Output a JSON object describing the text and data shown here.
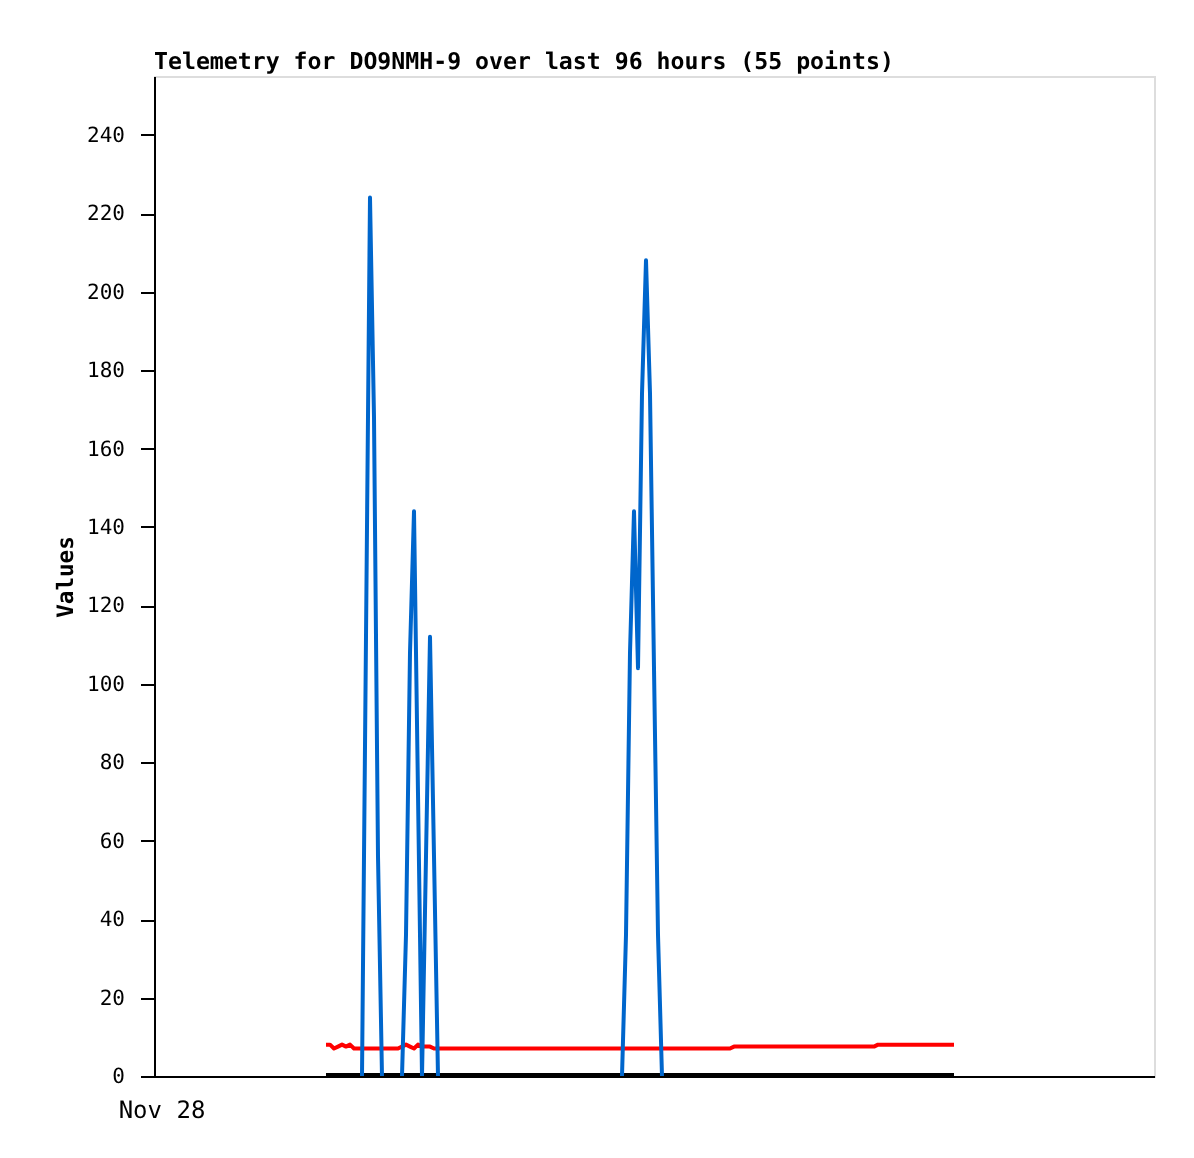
{
  "chart_data": {
    "type": "line",
    "title": "Telemetry for DO9NMH-9 over last 96 hours (55 points)",
    "ylabel": "Values",
    "annotations": [
      "Nov 28"
    ],
    "categories": [
      null,
      null,
      null,
      null,
      null,
      null,
      null,
      null,
      null,
      null,
      null,
      null,
      null,
      null,
      null,
      null,
      null,
      null,
      null,
      null,
      null,
      null,
      null,
      null,
      null,
      null,
      null,
      null,
      null,
      null,
      null,
      null,
      null,
      null,
      null,
      null,
      null,
      null,
      null,
      null,
      null,
      null,
      null,
      null,
      null,
      null,
      null,
      null,
      null,
      null,
      null,
      null,
      null,
      null,
      null,
      null,
      null,
      null,
      null,
      null,
      null,
      null,
      null,
      null,
      null,
      null,
      null,
      null,
      null,
      null,
      null,
      null,
      null,
      null,
      null,
      null,
      null,
      null,
      null,
      null,
      null,
      null,
      null,
      null,
      null,
      null,
      null,
      null,
      null,
      null,
      null,
      null,
      null,
      null,
      null,
      null,
      null,
      null,
      null,
      null,
      null,
      null,
      null,
      null,
      null,
      null,
      null,
      null,
      null,
      null,
      null,
      null,
      null,
      null,
      null,
      null,
      null,
      null,
      null,
      null,
      null,
      null,
      null,
      null,
      null,
      null,
      null,
      null,
      null,
      null,
      null,
      null,
      null,
      null,
      null,
      null,
      null,
      null,
      null,
      null,
      null,
      null,
      null,
      null,
      null,
      null,
      null,
      null,
      null,
      null,
      null,
      null,
      null,
      null,
      null,
      null,
      null,
      null
    ],
    "ylim": [
      0,
      255
    ],
    "yticks": [
      0,
      20,
      40,
      60,
      80,
      100,
      120,
      140,
      160,
      180,
      200,
      220,
      240
    ],
    "series": [
      {
        "color": "#000000",
        "values": [
          0,
          0,
          0,
          0,
          0,
          0,
          0,
          0,
          0,
          0,
          0,
          0,
          0,
          0,
          0,
          0,
          0,
          0,
          0,
          0,
          0,
          0,
          0,
          0,
          0,
          0,
          0,
          0,
          0,
          0,
          0,
          0,
          0,
          0,
          0,
          0,
          0,
          0,
          0,
          0,
          0,
          0,
          0,
          0,
          0,
          0,
          0,
          0,
          0,
          0,
          0,
          0,
          0,
          0,
          0,
          0,
          0,
          0,
          0,
          0,
          0,
          0,
          0,
          0,
          0,
          0,
          0,
          0,
          0,
          0,
          0,
          0,
          0,
          0,
          0,
          0,
          0,
          0,
          0,
          0,
          0,
          0,
          0,
          0,
          0,
          0,
          0,
          0,
          0,
          0,
          0,
          0,
          0,
          0,
          0,
          0,
          0,
          0,
          0,
          0,
          0,
          0,
          0,
          0,
          0,
          0,
          0,
          0,
          0,
          0,
          0,
          0,
          0,
          0,
          0,
          0,
          0,
          0,
          0,
          0,
          0,
          0,
          0,
          0,
          0,
          0,
          0,
          0,
          0,
          0,
          0,
          0,
          0,
          0,
          0,
          0,
          0,
          0,
          0,
          0,
          0,
          0,
          0,
          0,
          0,
          0,
          0,
          0,
          0,
          0,
          0,
          0,
          0,
          0,
          0,
          0,
          0,
          0
        ]
      },
      {
        "color": "#ff0000",
        "values": [
          8,
          8,
          7,
          7.5,
          8,
          7.5,
          8,
          7,
          7,
          7,
          7,
          7,
          7,
          7,
          7,
          7,
          7,
          7,
          7,
          7.5,
          8,
          7.5,
          7,
          8,
          7.5,
          7.5,
          7.5,
          7,
          7,
          7,
          7,
          7,
          7,
          7,
          7,
          7,
          7,
          7,
          7,
          7,
          7,
          7,
          7,
          7,
          7,
          7,
          7,
          7,
          7,
          7,
          7,
          7,
          7,
          7,
          7,
          7,
          7,
          7,
          7,
          7,
          7,
          7,
          7,
          7,
          7,
          7,
          7,
          7,
          7,
          7,
          7,
          7,
          7,
          7,
          7,
          7,
          7,
          7,
          7,
          7,
          7,
          7,
          7,
          7,
          7,
          7,
          7,
          7,
          7,
          7,
          7,
          7,
          7,
          7,
          7,
          7,
          7,
          7,
          7,
          7,
          7,
          7,
          7.5,
          7.5,
          7.5,
          7.5,
          7.5,
          7.5,
          7.5,
          7.5,
          7.5,
          7.5,
          7.5,
          7.5,
          7.5,
          7.5,
          7.5,
          7.5,
          7.5,
          7.5,
          7.5,
          7.5,
          7.5,
          7.5,
          7.5,
          7.5,
          7.5,
          7.5,
          7.5,
          7.5,
          7.5,
          7.5,
          7.5,
          7.5,
          7.5,
          7.5,
          7.5,
          7.5,
          8,
          8,
          8,
          8,
          8,
          8,
          8,
          8,
          8,
          8,
          8,
          8,
          8,
          8,
          8,
          8,
          8,
          8,
          8,
          8
        ]
      },
      {
        "color": "#0066cc",
        "values": [
          null,
          null,
          null,
          null,
          null,
          null,
          null,
          null,
          null,
          0,
          112,
          224,
          168,
          56,
          0,
          null,
          null,
          null,
          null,
          0,
          36,
          108,
          144,
          72,
          0,
          56,
          112,
          56,
          0,
          null,
          null,
          null,
          null,
          null,
          null,
          null,
          null,
          null,
          null,
          null,
          null,
          null,
          null,
          null,
          null,
          null,
          null,
          null,
          null,
          null,
          null,
          null,
          null,
          null,
          null,
          null,
          null,
          null,
          null,
          null,
          null,
          null,
          null,
          null,
          null,
          null,
          null,
          null,
          null,
          null,
          null,
          null,
          null,
          null,
          0,
          36,
          108,
          144,
          104,
          174,
          208,
          174,
          104,
          36,
          0,
          null,
          null,
          null,
          null,
          null,
          null,
          null,
          null,
          null,
          null,
          null,
          null,
          null,
          null,
          null,
          null,
          null,
          null,
          null,
          null,
          null,
          null,
          null,
          null,
          null,
          null,
          null,
          null,
          null,
          null,
          null,
          null,
          null,
          null,
          null,
          null,
          null,
          null,
          null,
          null,
          null,
          null,
          null,
          null,
          null,
          null,
          null,
          null,
          null,
          null,
          null,
          null,
          null,
          null,
          null,
          null,
          null,
          null,
          null,
          null,
          null,
          null,
          null,
          null,
          null,
          null,
          null,
          null,
          null,
          null,
          null,
          null,
          null
        ]
      }
    ]
  }
}
